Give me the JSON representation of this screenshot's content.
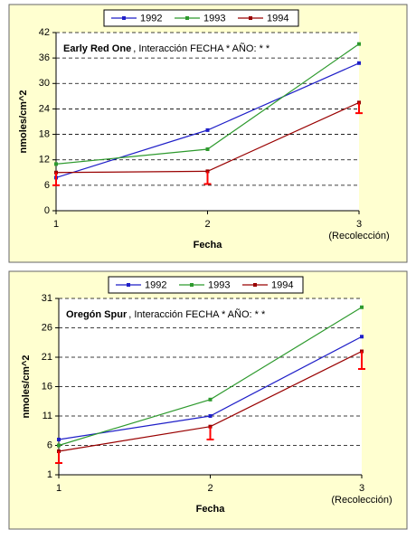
{
  "chart_data": [
    {
      "type": "line",
      "title": "Early Red One",
      "subtitle": ", Interacción FECHA * AÑO: * *",
      "x_label": "Fecha",
      "y_label": "nmoles/cm^2",
      "x_note": "(Recolección)",
      "x": [
        1,
        2,
        3
      ],
      "xlim": [
        1,
        3
      ],
      "xticks": [
        1,
        2,
        3
      ],
      "ylim": [
        0,
        42
      ],
      "yticks": [
        0,
        6,
        12,
        18,
        24,
        30,
        36,
        42
      ],
      "grid": true,
      "error_direction": "down",
      "series": [
        {
          "name": "1992",
          "color": "#1f1fc8",
          "values": [
            7.8,
            19,
            34.8
          ]
        },
        {
          "name": "1993",
          "color": "#2e9a2e",
          "values": [
            11,
            14.5,
            39.3
          ]
        },
        {
          "name": "1994",
          "color": "#990000",
          "values": [
            9,
            9.3,
            25.5
          ],
          "errors": [
            3,
            3,
            2.5
          ]
        }
      ]
    },
    {
      "type": "line",
      "title": "Oregón Spur",
      "subtitle": ", Interacción FECHA * AÑO: * *",
      "x_label": "Fecha",
      "y_label": "nmoles/cm^2",
      "x_note": "(Recolección)",
      "x": [
        1,
        2,
        3
      ],
      "xlim": [
        1,
        3
      ],
      "xticks": [
        1,
        2,
        3
      ],
      "ylim": [
        1,
        31
      ],
      "yticks": [
        1,
        6,
        11,
        16,
        21,
        26,
        31
      ],
      "grid": true,
      "error_direction": "down",
      "series": [
        {
          "name": "1992",
          "color": "#1f1fc8",
          "values": [
            7,
            11,
            24.5
          ]
        },
        {
          "name": "1993",
          "color": "#2e9a2e",
          "values": [
            6,
            13.8,
            29.5
          ]
        },
        {
          "name": "1994",
          "color": "#990000",
          "values": [
            5,
            9.2,
            22
          ],
          "errors": [
            2,
            2.2,
            3
          ]
        }
      ]
    }
  ]
}
